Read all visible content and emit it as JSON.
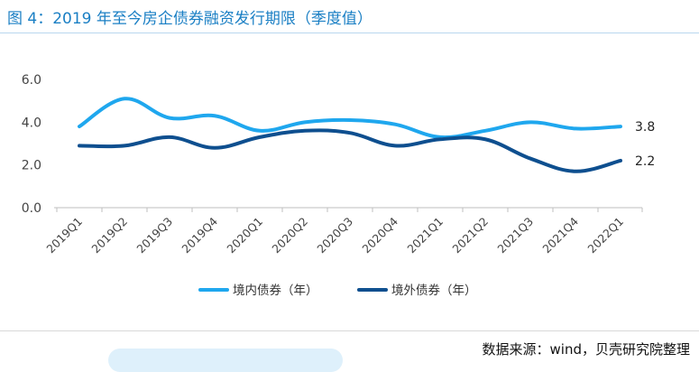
{
  "header": {
    "title": "图 4：2019 年至今房企债券融资发行期限（季度值）"
  },
  "footer": {
    "source": "数据来源：wind，贝壳研究院整理"
  },
  "chart_data": {
    "type": "line",
    "title": "图 4：2019 年至今房企债券融资发行期限（季度值）",
    "xlabel": "",
    "ylabel": "",
    "ylim": [
      0,
      6
    ],
    "yticks": [
      "0.0",
      "2.0",
      "4.0",
      "6.0"
    ],
    "grid": false,
    "legend_position": "bottom-center",
    "categories": [
      "2019Q1",
      "2019Q2",
      "2019Q3",
      "2019Q4",
      "2020Q1",
      "2020Q2",
      "2020Q3",
      "2020Q4",
      "2021Q1",
      "2021Q2",
      "2021Q3",
      "2021Q4",
      "2022Q1"
    ],
    "series": [
      {
        "name": "境内债券（年）",
        "color": "#1fa7ee",
        "values": [
          3.8,
          5.1,
          4.2,
          4.3,
          3.6,
          4.0,
          4.1,
          3.9,
          3.3,
          3.6,
          4.0,
          3.7,
          3.8
        ],
        "end_label": "3.8"
      },
      {
        "name": "境外债券（年）",
        "color": "#0e4f8f",
        "values": [
          2.9,
          2.9,
          3.3,
          2.8,
          3.3,
          3.6,
          3.5,
          2.9,
          3.2,
          3.2,
          2.3,
          1.7,
          2.2
        ],
        "end_label": "2.2"
      }
    ]
  }
}
